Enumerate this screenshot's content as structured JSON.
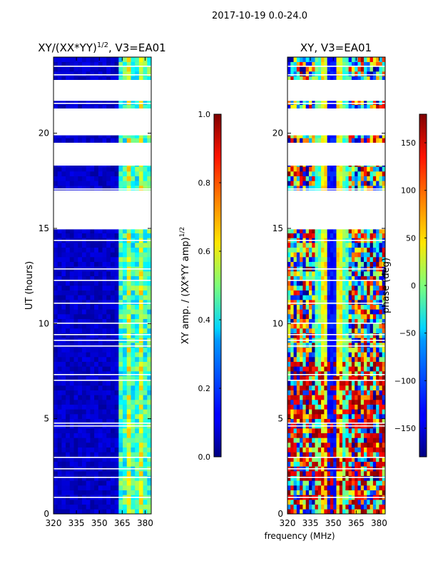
{
  "suptitle": "2017-10-19 0.0-24.0",
  "colors": {
    "background": "#ffffff",
    "dark_blue": "#00007f",
    "white_gap": "#ffffff"
  },
  "chart_data": [
    {
      "type": "heatmap",
      "title_main": "XY/(XX*YY)",
      "title_exp": "1/2",
      "title_suffix": ", V3=EA01",
      "ylabel": "UT (hours)",
      "xlabel": "",
      "xlim": [
        320,
        384
      ],
      "ylim": [
        0,
        24
      ],
      "x_ticks": [
        "320",
        "335",
        "350",
        "365",
        "380"
      ],
      "x_tick_values": [
        320,
        335,
        350,
        365,
        380
      ],
      "y_ticks": [
        "0",
        "5",
        "10",
        "15",
        "20"
      ],
      "y_tick_values": [
        0,
        5,
        10,
        15,
        20
      ],
      "colorbar": {
        "label_main": "XY amp. / (XX*YY amp)",
        "label_exp": "1/2",
        "range": [
          0.0,
          1.0
        ],
        "ticks": [
          "0.0",
          "0.2",
          "0.4",
          "0.6",
          "0.8",
          "1.0"
        ],
        "tick_values": [
          0.0,
          0.2,
          0.4,
          0.6,
          0.8,
          1.0
        ]
      },
      "bright_channel_band_mhz": [
        361,
        384
      ],
      "no_data_ut_intervals": [
        [
          14.95,
          17.0
        ],
        [
          18.3,
          19.5
        ],
        [
          19.9,
          21.3
        ],
        [
          21.7,
          22.8
        ]
      ]
    },
    {
      "type": "heatmap",
      "title": "XY, V3=EA01",
      "ylabel": "",
      "xlabel": "frequency (MHz)",
      "xlim": [
        320,
        384
      ],
      "ylim": [
        0,
        24
      ],
      "x_ticks": [
        "320",
        "335",
        "350",
        "365",
        "380"
      ],
      "x_tick_values": [
        320,
        335,
        350,
        365,
        380
      ],
      "y_ticks": [
        "0",
        "5",
        "10",
        "15",
        "20"
      ],
      "y_tick_values": [
        0,
        5,
        10,
        15,
        20
      ],
      "colorbar": {
        "label": "phase (deg)",
        "range": [
          -180,
          180
        ],
        "ticks": [
          "−150",
          "−100",
          "−50",
          "0",
          "50",
          "100",
          "150"
        ],
        "tick_values": [
          -150,
          -100,
          -50,
          0,
          50,
          100,
          150
        ]
      },
      "no_data_ut_intervals": [
        [
          14.95,
          17.0
        ],
        [
          18.3,
          19.5
        ],
        [
          19.9,
          21.3
        ],
        [
          21.7,
          22.8
        ]
      ]
    }
  ]
}
